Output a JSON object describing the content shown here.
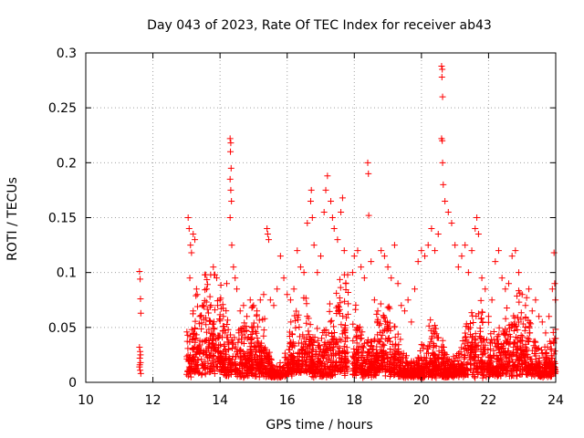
{
  "chart_data": {
    "type": "scatter",
    "title": "Day 043 of 2023, Rate Of TEC Index for receiver ab43",
    "xlabel": "GPS time / hours",
    "ylabel": "ROTI / TECUs",
    "xlim": [
      10,
      24
    ],
    "ylim": [
      0,
      0.3
    ],
    "xticks": [
      "10",
      "12",
      "14",
      "16",
      "18",
      "20",
      "22",
      "24"
    ],
    "yticks": [
      "0",
      "0.05",
      "0.1",
      "0.15",
      "0.2",
      "0.25",
      "0.3"
    ],
    "grid": true,
    "marker": "plus",
    "color": "#ff0000",
    "series": [
      {
        "points": [
          [
            11.6,
            0.101
          ],
          [
            11.62,
            0.094
          ],
          [
            11.63,
            0.076
          ],
          [
            11.64,
            0.063
          ],
          [
            11.6,
            0.032
          ],
          [
            11.62,
            0.028
          ],
          [
            11.61,
            0.022
          ],
          [
            11.63,
            0.018
          ],
          [
            11.6,
            0.014
          ],
          [
            11.62,
            0.011
          ],
          [
            11.64,
            0.008
          ],
          [
            11.61,
            0.016
          ],
          [
            11.63,
            0.025
          ],
          [
            13.05,
            0.15
          ],
          [
            13.08,
            0.14
          ],
          [
            13.12,
            0.125
          ],
          [
            13.15,
            0.118
          ],
          [
            13.2,
            0.135
          ],
          [
            13.25,
            0.13
          ],
          [
            13.3,
            0.085
          ],
          [
            13.32,
            0.08
          ],
          [
            13.1,
            0.095
          ],
          [
            13.2,
            0.065
          ],
          [
            13.4,
            0.06
          ],
          [
            13.5,
            0.07
          ],
          [
            13.6,
            0.085
          ],
          [
            13.7,
            0.078
          ],
          [
            13.8,
            0.105
          ],
          [
            13.9,
            0.095
          ],
          [
            14.0,
            0.075
          ],
          [
            14.1,
            0.06
          ],
          [
            14.2,
            0.09
          ],
          [
            14.3,
            0.222
          ],
          [
            14.32,
            0.218
          ],
          [
            14.31,
            0.21
          ],
          [
            14.33,
            0.195
          ],
          [
            14.3,
            0.185
          ],
          [
            14.32,
            0.175
          ],
          [
            14.34,
            0.165
          ],
          [
            14.3,
            0.15
          ],
          [
            14.35,
            0.125
          ],
          [
            14.4,
            0.105
          ],
          [
            14.45,
            0.095
          ],
          [
            14.5,
            0.085
          ],
          [
            14.6,
            0.065
          ],
          [
            14.7,
            0.07
          ],
          [
            14.8,
            0.06
          ],
          [
            14.9,
            0.075
          ],
          [
            15.0,
            0.07
          ],
          [
            15.1,
            0.065
          ],
          [
            15.2,
            0.075
          ],
          [
            15.3,
            0.08
          ],
          [
            15.4,
            0.14
          ],
          [
            15.42,
            0.135
          ],
          [
            15.45,
            0.13
          ],
          [
            15.5,
            0.075
          ],
          [
            15.6,
            0.07
          ],
          [
            15.7,
            0.085
          ],
          [
            15.8,
            0.115
          ],
          [
            15.9,
            0.095
          ],
          [
            16.0,
            0.08
          ],
          [
            16.1,
            0.075
          ],
          [
            16.2,
            0.085
          ],
          [
            16.3,
            0.12
          ],
          [
            16.4,
            0.105
          ],
          [
            16.5,
            0.1
          ],
          [
            16.6,
            0.145
          ],
          [
            16.7,
            0.165
          ],
          [
            16.72,
            0.175
          ],
          [
            16.75,
            0.15
          ],
          [
            16.8,
            0.125
          ],
          [
            16.9,
            0.1
          ],
          [
            17.0,
            0.115
          ],
          [
            17.1,
            0.155
          ],
          [
            17.15,
            0.175
          ],
          [
            17.2,
            0.188
          ],
          [
            17.3,
            0.165
          ],
          [
            17.35,
            0.15
          ],
          [
            17.4,
            0.14
          ],
          [
            17.5,
            0.13
          ],
          [
            17.6,
            0.155
          ],
          [
            17.65,
            0.168
          ],
          [
            17.7,
            0.12
          ],
          [
            17.75,
            0.09
          ],
          [
            17.95,
            0.1
          ],
          [
            18.0,
            0.115
          ],
          [
            18.1,
            0.12
          ],
          [
            18.2,
            0.105
          ],
          [
            18.3,
            0.095
          ],
          [
            18.4,
            0.2
          ],
          [
            18.42,
            0.19
          ],
          [
            18.43,
            0.152
          ],
          [
            18.5,
            0.11
          ],
          [
            18.6,
            0.075
          ],
          [
            18.7,
            0.065
          ],
          [
            18.8,
            0.12
          ],
          [
            18.9,
            0.115
          ],
          [
            19.0,
            0.105
          ],
          [
            19.1,
            0.095
          ],
          [
            19.2,
            0.125
          ],
          [
            19.3,
            0.09
          ],
          [
            19.4,
            0.07
          ],
          [
            19.5,
            0.065
          ],
          [
            19.6,
            0.075
          ],
          [
            19.7,
            0.055
          ],
          [
            19.8,
            0.085
          ],
          [
            19.9,
            0.11
          ],
          [
            20.0,
            0.12
          ],
          [
            20.1,
            0.115
          ],
          [
            20.2,
            0.125
          ],
          [
            20.3,
            0.14
          ],
          [
            20.4,
            0.12
          ],
          [
            20.5,
            0.135
          ],
          [
            20.6,
            0.288
          ],
          [
            20.62,
            0.285
          ],
          [
            20.61,
            0.278
          ],
          [
            20.63,
            0.26
          ],
          [
            20.6,
            0.222
          ],
          [
            20.62,
            0.22
          ],
          [
            20.63,
            0.2
          ],
          [
            20.65,
            0.18
          ],
          [
            20.7,
            0.165
          ],
          [
            20.8,
            0.155
          ],
          [
            20.9,
            0.145
          ],
          [
            21.0,
            0.125
          ],
          [
            21.1,
            0.105
          ],
          [
            21.2,
            0.115
          ],
          [
            21.3,
            0.125
          ],
          [
            21.4,
            0.1
          ],
          [
            21.5,
            0.12
          ],
          [
            21.6,
            0.14
          ],
          [
            21.65,
            0.15
          ],
          [
            21.7,
            0.135
          ],
          [
            21.8,
            0.095
          ],
          [
            21.9,
            0.085
          ],
          [
            22.0,
            0.06
          ],
          [
            22.1,
            0.075
          ],
          [
            22.2,
            0.11
          ],
          [
            22.3,
            0.12
          ],
          [
            22.4,
            0.095
          ],
          [
            22.5,
            0.085
          ],
          [
            22.6,
            0.09
          ],
          [
            22.7,
            0.115
          ],
          [
            22.8,
            0.12
          ],
          [
            22.9,
            0.1
          ],
          [
            23.0,
            0.08
          ],
          [
            23.1,
            0.07
          ],
          [
            23.2,
            0.085
          ],
          [
            23.3,
            0.065
          ],
          [
            23.4,
            0.075
          ],
          [
            23.5,
            0.06
          ],
          [
            23.6,
            0.055
          ],
          [
            23.7,
            0.045
          ],
          [
            23.8,
            0.06
          ],
          [
            23.9,
            0.085
          ],
          [
            23.95,
            0.118
          ],
          [
            23.97,
            0.09
          ],
          [
            23.99,
            0.075
          ]
        ]
      }
    ]
  }
}
